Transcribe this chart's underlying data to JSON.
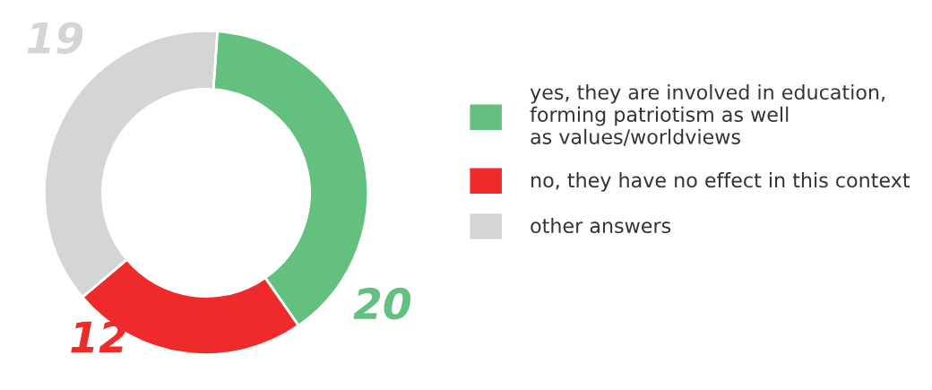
{
  "chart_data": {
    "type": "donut",
    "categories": [
      "yes, they are involved in education,\nforming patriotism as well\nas values/worldviews",
      "no, they have no effect in this context",
      "other answers"
    ],
    "values": [
      20,
      12,
      19
    ],
    "colors": [
      "#64c07e",
      "#ee2a2a",
      "#d4d5d7"
    ],
    "data_labels": true,
    "legend": "right"
  }
}
